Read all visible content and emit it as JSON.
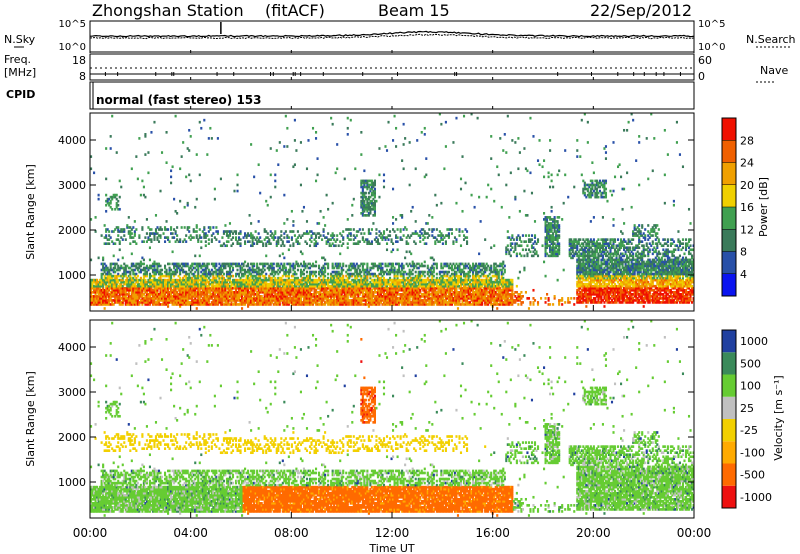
{
  "header": {
    "station": "Zhongshan Station",
    "mode": "(fitACF)",
    "beam": "Beam 15",
    "date": "22/Sep/2012"
  },
  "top_panels": {
    "nsky_label": "N.Sky",
    "nsearch_label": "N.Search",
    "noise_ticks_left": [
      "10^5",
      "10^0"
    ],
    "noise_ticks_right": [
      "10^5",
      "10^0"
    ],
    "freq_label_1": "Freq.",
    "freq_label_2": "[MHz]",
    "freq_ticks": [
      "18",
      "8"
    ],
    "nave_label": "Nave",
    "nave_ticks": [
      "60",
      "0"
    ],
    "cpid_label": "CPID",
    "cpid_text": "normal (fast stereo) 153"
  },
  "colors": {
    "power_scale": [
      "#0a14f0",
      "#2850a8",
      "#3a7a5a",
      "#40a050",
      "#f0d000",
      "#f0a000",
      "#f06000",
      "#f01000"
    ],
    "velocity_scale": [
      "#ee1010",
      "#ff6a00",
      "#ffaa00",
      "#f2d000",
      "#c0c0c0",
      "#66cc33",
      "#3a8a5a",
      "#2040a0"
    ]
  },
  "chart_data": [
    {
      "type": "heatmap",
      "name": "Power",
      "ylabel": "Slant Range [km]",
      "yticks": [
        "1000",
        "2000",
        "3000",
        "4000"
      ],
      "ylim": [
        200,
        4600
      ],
      "xlim": [
        0,
        24
      ],
      "colorbar_label": "Power [dB]",
      "colorbar_ticks": [
        "4",
        "8",
        "12",
        "16",
        "20",
        "24",
        "28"
      ],
      "colorbar_range": [
        0,
        32
      ]
    },
    {
      "type": "heatmap",
      "name": "Velocity",
      "ylabel": "Slant Range [km]",
      "yticks": [
        "1000",
        "2000",
        "3000",
        "4000"
      ],
      "ylim": [
        200,
        4600
      ],
      "xlim": [
        0,
        24
      ],
      "colorbar_label": "Velocity [m s⁻¹]",
      "colorbar_ticks": [
        "1000",
        "500",
        "100",
        "25",
        "-25",
        "-100",
        "-500",
        "-1000"
      ]
    }
  ],
  "x_axis": {
    "ticks": [
      "00:00",
      "04:00",
      "08:00",
      "12:00",
      "16:00",
      "20:00",
      "00:00"
    ],
    "label": "Time UT"
  }
}
